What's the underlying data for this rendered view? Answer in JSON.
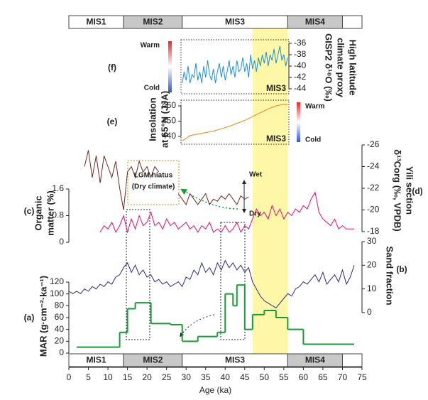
{
  "chart_data": {
    "type": "stacked-panels",
    "xlabel": "Age (ka)",
    "xlim": [
      0,
      75
    ],
    "xticks": [
      0,
      5,
      10,
      15,
      20,
      25,
      30,
      35,
      40,
      45,
      50,
      55,
      60,
      65,
      70,
      75
    ],
    "stages": {
      "names": [
        "MIS1",
        "MIS2",
        "MIS3",
        "MIS4"
      ],
      "bounds": [
        0,
        14,
        29,
        56,
        70
      ],
      "fills": [
        "#ffffff",
        "#c8c8c8",
        "#ffffff",
        "#c8c8c8"
      ],
      "text_colors": [
        "#e8902a",
        "#333333",
        "#e8902a",
        "#333333"
      ]
    },
    "highlight": {
      "xlim": [
        47,
        56
      ],
      "color": "#fff7a8"
    },
    "annotations": [
      "LGM hiatus",
      "(Dry climate)",
      "Wet",
      "Dry",
      "Warm",
      "Cold"
    ],
    "panels": [
      {
        "type": "step",
        "panel_label": "(a)",
        "ylabel": [
          "MAR (g·cm⁻²·ka⁻¹)"
        ],
        "color": "#1a9a3a",
        "axis": "left",
        "ylim": [
          0,
          120
        ],
        "yticks": [
          0,
          20,
          40,
          60,
          80,
          100,
          120
        ],
        "bins": [
          2,
          13,
          15,
          17,
          21,
          26,
          29,
          33,
          38,
          40,
          42,
          43,
          45,
          47,
          50,
          53,
          56,
          60,
          73
        ],
        "values": [
          10,
          35,
          75,
          85,
          50,
          48,
          20,
          28,
          35,
          100,
          80,
          115,
          40,
          65,
          72,
          60,
          40,
          15
        ]
      },
      {
        "type": "line",
        "panel_label": "(b)",
        "ylabel": [
          "Sand fraction"
        ],
        "color": "#2b2b80",
        "axis": "right",
        "ylim": [
          0,
          30
        ],
        "yticks": [
          0,
          10,
          20,
          30
        ],
        "x": [
          0,
          1,
          2,
          3,
          4,
          5,
          6,
          7,
          8,
          9,
          10,
          11,
          12,
          13,
          14,
          15,
          16,
          17,
          18,
          19,
          20,
          21,
          22,
          23,
          24,
          25,
          26,
          27,
          28,
          29,
          30,
          31,
          32,
          33,
          34,
          35,
          36,
          37,
          38,
          39,
          40,
          41,
          42,
          43,
          44,
          45,
          46,
          47,
          48,
          49,
          50,
          51,
          52,
          53,
          54,
          55,
          56,
          57,
          58,
          59,
          60,
          61,
          62,
          63,
          64,
          65,
          66,
          67,
          68,
          69,
          70,
          71,
          72,
          73
        ],
        "values": [
          9,
          8,
          9,
          8,
          10,
          9,
          11,
          10,
          12,
          11,
          13,
          12,
          15,
          16,
          19,
          21,
          17,
          20,
          16,
          18,
          15,
          16,
          13,
          14,
          12,
          13,
          11,
          12,
          13,
          11,
          15,
          14,
          18,
          16,
          21,
          17,
          19,
          16,
          21,
          18,
          22,
          19,
          21,
          18,
          20,
          17,
          19,
          13,
          10,
          7,
          5,
          4,
          3,
          2,
          4,
          6,
          8,
          7,
          10,
          11,
          13,
          12,
          14,
          16,
          13,
          17,
          12,
          14,
          16,
          13,
          18,
          12,
          15,
          20
        ]
      },
      {
        "type": "line",
        "panel_label": "(c)",
        "ylabel": [
          "Organic",
          "matter (%)"
        ],
        "color": "#d4147a",
        "axis": "left",
        "ylim": [
          0,
          1.6
        ],
        "yticks": [
          0,
          0.8,
          1.6
        ],
        "x": [
          8,
          9,
          10,
          11,
          12,
          13,
          14,
          15,
          16,
          17,
          18,
          19,
          20,
          21,
          22,
          23,
          24,
          25,
          26,
          27,
          28,
          29,
          30,
          31,
          32,
          33,
          34,
          35,
          36,
          37,
          38,
          39,
          40,
          41,
          42,
          43,
          44,
          45,
          46,
          47,
          48,
          49,
          50,
          51,
          52,
          53,
          54,
          55,
          56,
          57,
          58,
          59,
          60,
          61,
          62,
          63,
          64,
          65,
          66,
          67,
          68,
          69,
          70,
          71,
          72,
          73
        ],
        "values": [
          0.3,
          0.5,
          0.4,
          0.6,
          0.3,
          0.5,
          0.8,
          0.3,
          0.7,
          0.4,
          0.8,
          0.5,
          0.6,
          0.9,
          0.5,
          0.6,
          0.4,
          0.7,
          0.5,
          0.6,
          0.4,
          0.5,
          0.6,
          0.4,
          0.5,
          0.3,
          0.5,
          0.4,
          0.6,
          0.3,
          0.4,
          0.3,
          0.5,
          0.3,
          0.4,
          0.6,
          0.3,
          0.5,
          0.4,
          0.7,
          1.0,
          0.8,
          0.9,
          0.7,
          1.1,
          0.8,
          1.0,
          0.7,
          0.9,
          0.8,
          1.0,
          0.9,
          1.1,
          1.0,
          1.3,
          1.5,
          0.9,
          0.7,
          0.6,
          0.5,
          0.7,
          0.4,
          0.5,
          0.4,
          0.4,
          0.4
        ]
      },
      {
        "type": "line",
        "panel_label": "(d)",
        "ylabel": [
          "Yili section",
          "δ¹³Corg (‰, VPDB)"
        ],
        "color": "#6b2a1e",
        "axis": "right",
        "y_inverted": true,
        "ylim": [
          -26,
          -18
        ],
        "yticks": [
          -26,
          -24,
          -22,
          -20,
          -18
        ],
        "x": [
          4,
          5,
          6,
          7,
          8,
          9,
          10,
          11,
          12,
          13,
          14,
          15,
          16,
          17,
          18,
          19,
          20,
          21,
          22,
          23,
          24,
          25,
          26,
          27,
          28,
          29,
          30,
          31,
          32,
          33,
          34,
          35,
          36,
          37,
          38,
          39,
          40,
          41,
          42,
          43,
          44,
          45,
          46
        ],
        "values": [
          -24,
          -25.5,
          -23,
          -25,
          -22.5,
          -25,
          -24,
          -23,
          -24.5,
          -22,
          -20,
          -23.5,
          -24,
          -23,
          -24.5,
          -23.5,
          -24,
          -23,
          -24,
          -23.5,
          null,
          null,
          null,
          null,
          -21.5,
          -21,
          -20.5,
          -21.5,
          -21,
          -20.5,
          -21,
          -21.5,
          -20.5,
          -21,
          -20.8,
          -21.3,
          -21,
          -21.5,
          -21,
          -20.5,
          -21.3,
          -21,
          -21.2
        ]
      },
      {
        "type": "line",
        "panel_label": "(e)",
        "ylabel": [
          "Insolation",
          "at 65°N (JJA)"
        ],
        "color": "#e08a1e",
        "axis": "left",
        "ylim": [
          440,
          460
        ],
        "yticks": [
          440,
          450,
          460
        ],
        "x": [
          29,
          31,
          33,
          35,
          37,
          39,
          41,
          43,
          45,
          47,
          49,
          51,
          53,
          55,
          56
        ],
        "values": [
          437,
          440.5,
          441.5,
          442.5,
          443.5,
          445,
          446.5,
          448.5,
          450.5,
          453,
          455.5,
          458,
          460,
          461,
          460.5
        ]
      },
      {
        "type": "line",
        "panel_label": "(f)",
        "ylabel": [
          "High latitude",
          "climate proxy",
          "GISP2 δ¹⁸O (‰)"
        ],
        "color": "#1e90d0",
        "axis": "right",
        "ylim": [
          -44,
          -36
        ],
        "yticks": [
          -44,
          -42,
          -40,
          -38,
          -36
        ],
        "x": [
          29,
          29.5,
          30,
          30.5,
          31,
          31.5,
          32,
          32.5,
          33,
          33.5,
          34,
          34.5,
          35,
          35.5,
          36,
          36.5,
          37,
          37.5,
          38,
          38.5,
          39,
          39.5,
          40,
          40.5,
          41,
          41.5,
          42,
          42.5,
          43,
          43.5,
          44,
          44.5,
          45,
          45.5,
          46,
          46.5,
          47,
          47.5,
          48,
          48.5,
          49,
          49.5,
          50,
          50.5,
          51,
          51.5,
          52,
          52.5,
          53,
          53.5,
          54,
          54.5,
          55,
          55.5,
          56
        ],
        "values": [
          -43,
          -41,
          -42.5,
          -40,
          -43,
          -41.5,
          -42,
          -39.5,
          -42.5,
          -41,
          -43,
          -40,
          -42,
          -39,
          -41.5,
          -42.5,
          -40.5,
          -43,
          -41,
          -39.5,
          -42,
          -40,
          -42.5,
          -41,
          -39,
          -41.5,
          -40,
          -42,
          -39,
          -41,
          -40.5,
          -38.5,
          -41,
          -39.5,
          -42,
          -38,
          -40.5,
          -39,
          -41,
          -38.5,
          -40,
          -38,
          -39.5,
          -37.5,
          -40,
          -38,
          -39,
          -37,
          -39.5,
          -38,
          -36.5,
          -39,
          -38,
          -40,
          -38.5
        ]
      }
    ]
  }
}
